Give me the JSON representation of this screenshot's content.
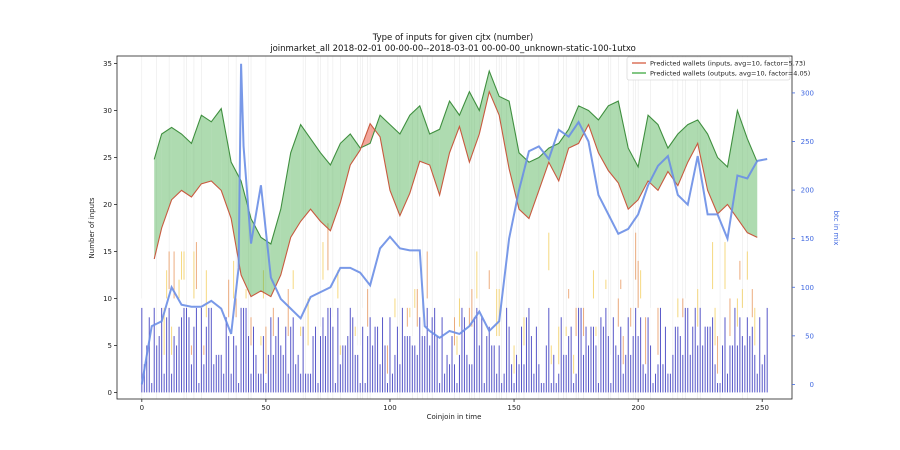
{
  "chart_data": {
    "type": "line",
    "title": "Type of inputs for given cjtx (number)",
    "subtitle": "joinmarket_all 2018-02-01 00-00-00--2018-03-01 00-00-00_unknown-static-100-1utxo",
    "xlabel": "Coinjoin in time",
    "ylabel": "Number of inputs",
    "y2label": "btc in mix",
    "xlim": [
      -10,
      262
    ],
    "ylim": [
      -0.7,
      35.8
    ],
    "y2lim": [
      -15,
      338
    ],
    "xticks": [
      0,
      50,
      100,
      150,
      200,
      250
    ],
    "yticks": [
      0,
      5,
      10,
      15,
      20,
      25,
      30,
      35
    ],
    "y2ticks": [
      0,
      50,
      100,
      150,
      200,
      250,
      300
    ],
    "legend_position": "top-right",
    "series": [
      {
        "name": "Predicted wallets (inputs, avg=10, factor=5.73)",
        "color": "#d96a50",
        "x": [
          5,
          8,
          12,
          16,
          20,
          24,
          28,
          32,
          36,
          40,
          44,
          48,
          52,
          56,
          60,
          64,
          68,
          72,
          76,
          80,
          84,
          88,
          92,
          96,
          100,
          104,
          108,
          112,
          116,
          120,
          124,
          128,
          132,
          136,
          140,
          144,
          148,
          152,
          156,
          160,
          164,
          168,
          172,
          176,
          180,
          184,
          188,
          192,
          196,
          200,
          204,
          208,
          212,
          216,
          220,
          224,
          228,
          232,
          236,
          240,
          244,
          248
        ],
        "values": [
          14.2,
          17.5,
          20.5,
          21.5,
          20.8,
          22.2,
          22.5,
          21.5,
          18.5,
          12.5,
          10.2,
          10.8,
          10.2,
          12.5,
          16.5,
          18.2,
          19.5,
          18.2,
          17.2,
          20.2,
          24.2,
          25.8,
          28.6,
          27.2,
          21.5,
          18.8,
          21.2,
          24.6,
          24.2,
          21.0,
          25.5,
          28.3,
          24.5,
          27.5,
          32.0,
          29.5,
          23.8,
          19.5,
          18.5,
          21.5,
          24.5,
          22.5,
          26.0,
          26.5,
          28.5,
          25.5,
          23.6,
          22.3,
          19.5,
          20.5,
          22.5,
          21.5,
          23.5,
          22.0,
          24.5,
          26.5,
          21.5,
          19.0,
          20.0,
          18.5,
          17.0,
          16.5
        ]
      },
      {
        "name": "Predicted wallets (outputs, avg=10, factor=4.05)",
        "color": "#4caf50",
        "x": [
          5,
          8,
          12,
          16,
          20,
          24,
          28,
          32,
          36,
          40,
          44,
          48,
          52,
          56,
          60,
          64,
          68,
          72,
          76,
          80,
          84,
          88,
          92,
          96,
          100,
          104,
          108,
          112,
          116,
          120,
          124,
          128,
          132,
          136,
          140,
          144,
          148,
          152,
          156,
          160,
          164,
          168,
          172,
          176,
          180,
          184,
          188,
          192,
          196,
          200,
          204,
          208,
          212,
          216,
          220,
          224,
          228,
          232,
          236,
          240,
          244,
          248
        ],
        "values": [
          24.8,
          27.5,
          28.2,
          27.5,
          26.5,
          29.5,
          28.8,
          30.2,
          24.5,
          22.5,
          18.5,
          16.5,
          15.8,
          19.5,
          25.5,
          28.5,
          27.0,
          25.5,
          24.2,
          26.5,
          27.5,
          26.0,
          26.5,
          29.5,
          28.5,
          27.5,
          29.5,
          30.5,
          27.5,
          28.0,
          31.0,
          29.5,
          32.0,
          30.0,
          34.2,
          31.5,
          31.0,
          25.5,
          24.5,
          25.0,
          26.0,
          26.5,
          28.0,
          30.5,
          30.0,
          29.0,
          30.5,
          31.0,
          26.0,
          24.0,
          29.5,
          28.5,
          26.0,
          27.5,
          28.5,
          29.0,
          27.5,
          25.0,
          24.0,
          30.0,
          27.0,
          24.5
        ]
      },
      {
        "name": "btc in mix",
        "color": "#6a8ee6",
        "axis": "right",
        "x": [
          0,
          4,
          8,
          12,
          16,
          20,
          24,
          28,
          32,
          36,
          39,
          40,
          41,
          44,
          48,
          52,
          56,
          60,
          64,
          68,
          72,
          76,
          80,
          84,
          88,
          92,
          96,
          100,
          104,
          108,
          112,
          114,
          116,
          120,
          124,
          128,
          132,
          136,
          140,
          144,
          148,
          152,
          156,
          160,
          164,
          168,
          172,
          176,
          180,
          184,
          188,
          192,
          196,
          200,
          204,
          208,
          212,
          216,
          220,
          224,
          228,
          232,
          236,
          240,
          244,
          248,
          252
        ],
        "values": [
          0,
          60,
          65,
          100,
          82,
          80,
          80,
          86,
          78,
          52,
          120,
          330,
          245,
          145,
          205,
          110,
          88,
          78,
          68,
          90,
          95,
          100,
          120,
          120,
          115,
          102,
          140,
          152,
          140,
          138,
          138,
          60,
          55,
          48,
          55,
          52,
          60,
          75,
          55,
          65,
          150,
          200,
          240,
          245,
          232,
          262,
          255,
          270,
          250,
          195,
          175,
          155,
          160,
          175,
          205,
          225,
          235,
          195,
          185,
          235,
          175,
          175,
          150,
          215,
          212,
          230,
          232
        ]
      }
    ]
  }
}
